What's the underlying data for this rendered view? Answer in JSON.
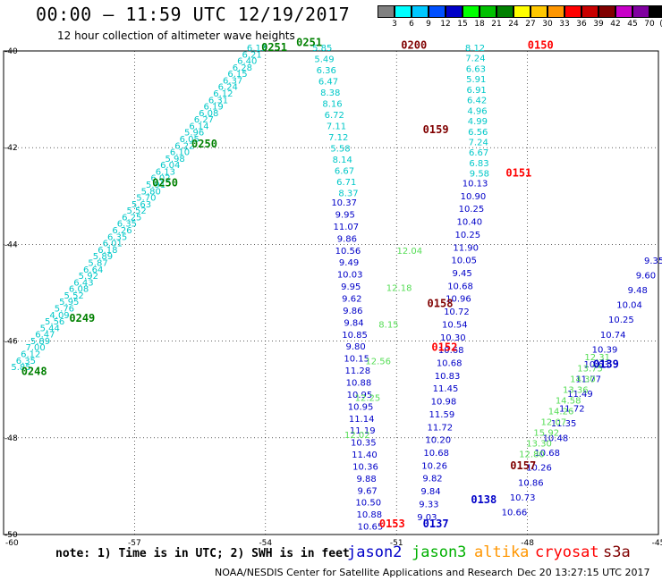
{
  "header": {
    "title": "00:00 — 11:59 UTC 12/19/2017",
    "subtitle": "12 hour collection of altimeter wave heights"
  },
  "scale": {
    "unit": "(ft)",
    "colors": [
      "#808080",
      "#00ffff",
      "#00c8ff",
      "#0050ff",
      "#0000c8",
      "#00ff00",
      "#00c000",
      "#008000",
      "#ffff00",
      "#ffc800",
      "#ff9600",
      "#ff0000",
      "#c80000",
      "#800000",
      "#c800c8",
      "#8000a0",
      "#000000"
    ],
    "labels": [
      "3",
      "6",
      "9",
      "12",
      "15",
      "18",
      "21",
      "24",
      "27",
      "30",
      "33",
      "36",
      "39",
      "42",
      "45",
      "70"
    ]
  },
  "footer": {
    "note": "note: 1) Time is in UTC; 2) SWH is in feet",
    "credit": "NOAA/NESDIS Center for Satellite Applications and Research",
    "timestamp": "Dec 20 13:27:15 UTC 2017"
  },
  "legend": [
    {
      "name": "jason2",
      "color": "#0000c8"
    },
    {
      "name": "jason3",
      "color": "#00b000"
    },
    {
      "name": "altika",
      "color": "#ff9600"
    },
    {
      "name": "cryosat",
      "color": "#ff0000"
    },
    {
      "name": "s3a",
      "color": "#800000"
    }
  ],
  "chart_data": {
    "type": "scatter",
    "title": "00:00 — 11:59 UTC 12/19/2017",
    "xlim": [
      -60,
      -45
    ],
    "ylim": [
      -50,
      -40
    ],
    "x_ticks": [
      "-60",
      "-57",
      "-54",
      "-51",
      "-48",
      "-45"
    ],
    "y_ticks": [
      "-40",
      "-42",
      "-44",
      "-46",
      "-48",
      "-50"
    ],
    "x_tick_values": [
      -60,
      -57,
      -54,
      -51,
      -48,
      -45
    ],
    "y_tick_values": [
      -40,
      -42,
      -44,
      -46,
      -48,
      -50
    ],
    "grid": true,
    "tracks": [
      {
        "id": "track-cyan-left",
        "color": "#00c8c8",
        "values": [
          "5.85",
          "6.35",
          "6.12",
          "7.00",
          "5.89",
          "6.47",
          "5.44",
          "5.56",
          "4.09",
          "5.76",
          "5.95",
          "5.52",
          "6.08",
          "6.43",
          "5.92",
          "6.64",
          "5.87",
          "5.89",
          "6.18",
          "6.01",
          "6.35",
          "6.26",
          "6.35",
          "6.25",
          "5.52",
          "5.63",
          "5.70",
          "5.80",
          "5.91",
          "6.02",
          "6.13",
          "6.04",
          "5.98",
          "6.10",
          "6.22",
          "6.05",
          "5.96",
          "6.14",
          "6.27",
          "6.08",
          "6.19",
          "6.31",
          "6.12",
          "6.24",
          "6.37",
          "6.15",
          "6.28",
          "6.40",
          "6.21",
          "6.13"
        ],
        "lon_start": -59.6,
        "lat_start": -46.6,
        "lon_end": -54.2,
        "lat_end": -40.0
      },
      {
        "id": "track-cyan-mid",
        "color": "#00c8c8",
        "values": [
          "5.85",
          "5.49",
          "6.36",
          "6.47",
          "8.38",
          "8.16",
          "6.72",
          "7.11",
          "7.12",
          "5.58",
          "8.14",
          "6.67",
          "6.71",
          "8.37"
        ],
        "lon_start": -52.7,
        "lat_start": -40.0,
        "lon_end": -52.1,
        "lat_end": -43.0
      },
      {
        "id": "track-jason2-main",
        "color": "#0000c8",
        "values": [
          "10.37",
          "9.95",
          "11.07",
          "9.86",
          "10.56",
          "9.49",
          "10.03",
          "9.95",
          "9.62",
          "9.86",
          "9.84",
          "10.85",
          "9.80",
          "10.15",
          "11.28",
          "10.88",
          "10.95",
          "10.95",
          "11.14",
          "11.19",
          "10.35",
          "11.40",
          "10.36",
          "9.88",
          "9.67",
          "10.50",
          "10.88",
          "10.65"
        ],
        "lon_start": -52.2,
        "lat_start": -43.2,
        "lon_end": -51.6,
        "lat_end": -49.9
      },
      {
        "id": "track-cyan-right",
        "color": "#00c8c8",
        "values": [
          "8.12",
          "7.24",
          "6.63",
          "5.91",
          "6.91",
          "6.42",
          "4.96",
          "4.99",
          "6.56",
          "7.24",
          "6.67",
          "6.83",
          "9.58"
        ],
        "lon_start": -49.2,
        "lat_start": -40.0,
        "lon_end": -49.1,
        "lat_end": -42.6
      },
      {
        "id": "track-jason2-right",
        "color": "#0000c8",
        "values": [
          "10.13",
          "10.90",
          "10.25",
          "10.40",
          "10.25",
          "11.90",
          "10.05",
          "9.45",
          "10.68",
          "10.96",
          "10.72",
          "10.54",
          "10.30",
          "10.68",
          "10.68",
          "10.83",
          "11.45",
          "10.98",
          "11.59",
          "11.72",
          "10.20",
          "10.68",
          "10.26",
          "9.82",
          "9.84",
          "9.33",
          "9.03"
        ],
        "lon_start": -49.2,
        "lat_start": -42.8,
        "lon_end": -50.3,
        "lat_end": -49.7
      },
      {
        "id": "track-jason3-right",
        "color": "#55dd55",
        "values": [
          "12.04",
          "12.18",
          "8.15",
          "12.56",
          "12.25",
          "12.02"
        ],
        "lon_start": -50.7,
        "lat_start": -44.2,
        "lon_end": -51.9,
        "lat_end": -48.0
      },
      {
        "id": "track-jason2-se",
        "color": "#0000c8",
        "values": [
          "9.35",
          "9.60",
          "9.48",
          "10.04",
          "10.25",
          "10.74",
          "10.39",
          "10.63",
          "11.77",
          "11.49",
          "11.72",
          "11.35",
          "10.48",
          "10.68",
          "10.26",
          "10.86",
          "10.73",
          "10.66"
        ],
        "lon_start": -45.1,
        "lat_start": -44.4,
        "lon_end": -48.3,
        "lat_end": -49.6
      },
      {
        "id": "track-jason3-se",
        "color": "#55dd55",
        "values": [
          "12.31",
          "13.75",
          "14.30",
          "13.36",
          "14.58",
          "14.26",
          "12.07",
          "15.92",
          "13.30",
          "12.80"
        ],
        "lon_start": -46.4,
        "lat_start": -46.4,
        "lon_end": -47.9,
        "lat_end": -48.4
      }
    ],
    "annotations": [
      {
        "text": "0251",
        "lon": -53.8,
        "lat": -40.0,
        "color": "#008000"
      },
      {
        "text": "0251",
        "lon": -53.0,
        "lat": -39.9,
        "color": "#008000"
      },
      {
        "text": "0200",
        "lon": -50.6,
        "lat": -39.95,
        "color": "#800000"
      },
      {
        "text": "0150",
        "lon": -47.7,
        "lat": -39.95,
        "color": "#ff0000"
      },
      {
        "text": "0250",
        "lon": -55.4,
        "lat": -42.0,
        "color": "#008000"
      },
      {
        "text": "0250",
        "lon": -56.3,
        "lat": -42.8,
        "color": "#008000"
      },
      {
        "text": "0159",
        "lon": -50.1,
        "lat": -41.7,
        "color": "#800000"
      },
      {
        "text": "0151",
        "lon": -48.2,
        "lat": -42.6,
        "color": "#ff0000"
      },
      {
        "text": "0249",
        "lon": -58.2,
        "lat": -45.6,
        "color": "#008000"
      },
      {
        "text": "0248",
        "lon": -59.3,
        "lat": -46.7,
        "color": "#008000"
      },
      {
        "text": "0158",
        "lon": -50.0,
        "lat": -45.3,
        "color": "#800000"
      },
      {
        "text": "0152",
        "lon": -49.9,
        "lat": -46.2,
        "color": "#ff0000"
      },
      {
        "text": "0139",
        "lon": -46.2,
        "lat": -46.55,
        "color": "#0000c8"
      },
      {
        "text": "0157",
        "lon": -48.1,
        "lat": -48.65,
        "color": "#800000"
      },
      {
        "text": "0138",
        "lon": -49.0,
        "lat": -49.35,
        "color": "#0000c8"
      },
      {
        "text": "0137",
        "lon": -50.1,
        "lat": -49.85,
        "color": "#0000c8"
      },
      {
        "text": "0153",
        "lon": -51.1,
        "lat": -49.85,
        "color": "#ff0000"
      }
    ]
  }
}
